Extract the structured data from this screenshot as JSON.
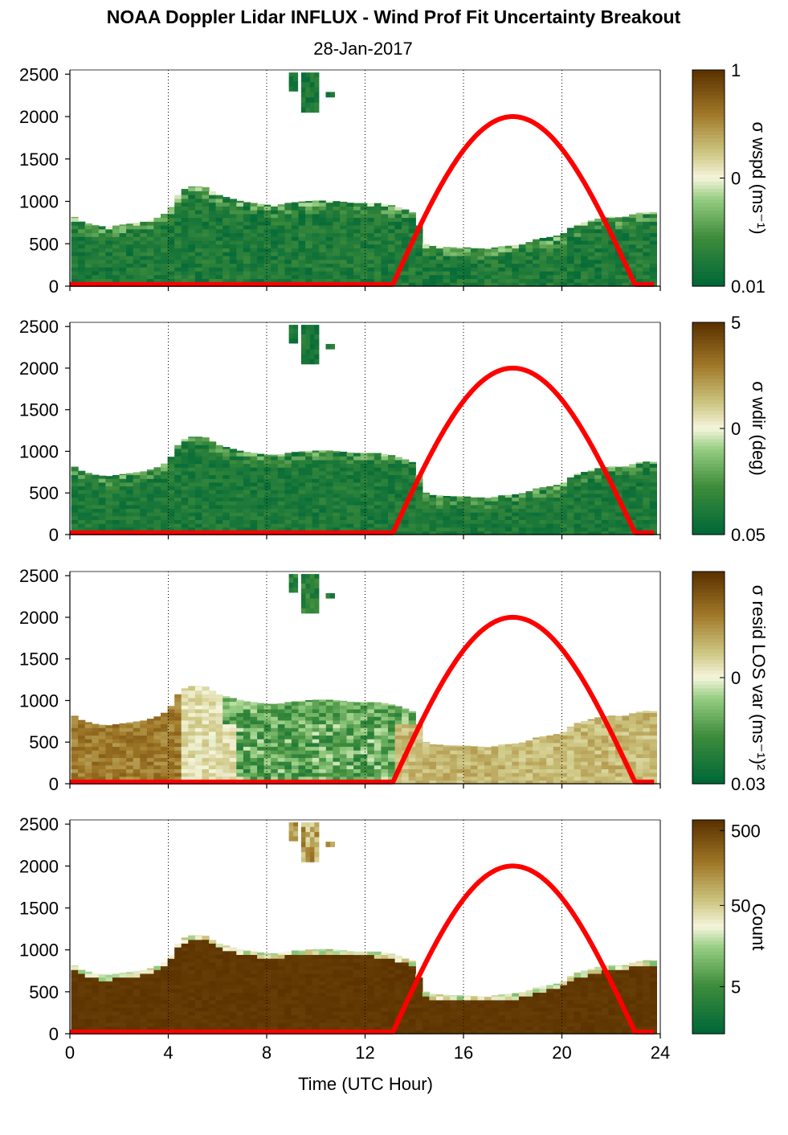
{
  "header": {
    "title": "NOAA Doppler Lidar INFLUX - Wind Prof Fit Uncertainty Breakout",
    "subtitle": "28-Jan-2017"
  },
  "colors": {
    "low": "#006837",
    "mid": "#f5f5dc",
    "high": "#5c3300",
    "overlay_line": "#ff0000",
    "grid": "#000000"
  },
  "chart_data": {
    "type": "heatmap",
    "title": "NOAA Doppler Lidar INFLUX - Wind Prof Fit Uncertainty Breakout",
    "subtitle": "28-Jan-2017",
    "xlabel": "Time (UTC Hour)",
    "xlim": [
      0,
      24
    ],
    "xticks": [
      0,
      4,
      8,
      12,
      16,
      20,
      24
    ],
    "ylim": [
      0,
      2550
    ],
    "yticks": [
      0,
      500,
      1000,
      1500,
      2000,
      2500
    ],
    "grid": "vertical dotted at x ticks",
    "overlay_line": {
      "peak_height": 2000,
      "peak_hour": 18.0,
      "rise_hour": 13.1,
      "set_hour": 23.0,
      "baseline": 20
    },
    "panels": [
      {
        "name": "wspd",
        "colorbar_label": "σ wspd (ms⁻¹)",
        "colorbar_ticks": [
          "1",
          "0",
          "0.01"
        ],
        "colorbar_min": 0.01,
        "colorbar_max": 1
      },
      {
        "name": "wdir",
        "colorbar_label": "σ wdir (deg)",
        "colorbar_ticks": [
          "5",
          "0",
          "0.05"
        ],
        "colorbar_min": 0.05,
        "colorbar_max": 5
      },
      {
        "name": "resid",
        "colorbar_label": "σ resid LOS var (ms⁻¹)²",
        "colorbar_ticks": [
          "0",
          "0.03"
        ],
        "colorbar_min": 0.03
      },
      {
        "name": "count",
        "colorbar_label": "Count",
        "colorbar_ticks": [
          "500",
          "50",
          "5"
        ],
        "colorbar_max": 500
      }
    ],
    "data_top_profile": {
      "hours": [
        0,
        0.5,
        1,
        1.5,
        2,
        2.5,
        3,
        3.5,
        4,
        4.5,
        5,
        5.5,
        6,
        6.5,
        7,
        7.5,
        8,
        8.5,
        9,
        9.5,
        10,
        10.5,
        11,
        11.5,
        12,
        12.5,
        13,
        13.5,
        14,
        14.5,
        15,
        15.5,
        16,
        16.5,
        17,
        17.5,
        18,
        18.5,
        19,
        19.5,
        20,
        20.5,
        21,
        21.5,
        22,
        22.5,
        23,
        23.5,
        23.8
      ],
      "top_m": [
        850,
        760,
        720,
        700,
        720,
        740,
        760,
        800,
        880,
        1130,
        1180,
        1170,
        1080,
        1040,
        1000,
        980,
        960,
        960,
        990,
        1000,
        1010,
        1010,
        1000,
        980,
        980,
        980,
        960,
        920,
        860,
        480,
        470,
        460,
        460,
        450,
        440,
        470,
        480,
        500,
        560,
        580,
        610,
        720,
        760,
        800,
        820,
        810,
        860,
        880,
        870
      ]
    },
    "isolated_blobs": [
      {
        "x0": 8.9,
        "x1": 9.1,
        "y0": 2300,
        "y1": 2520
      },
      {
        "x0": 9.4,
        "x1": 9.95,
        "y0": 2050,
        "y1": 2520
      },
      {
        "x0": 10.4,
        "x1": 10.7,
        "y0": 2230,
        "y1": 2290
      }
    ]
  }
}
